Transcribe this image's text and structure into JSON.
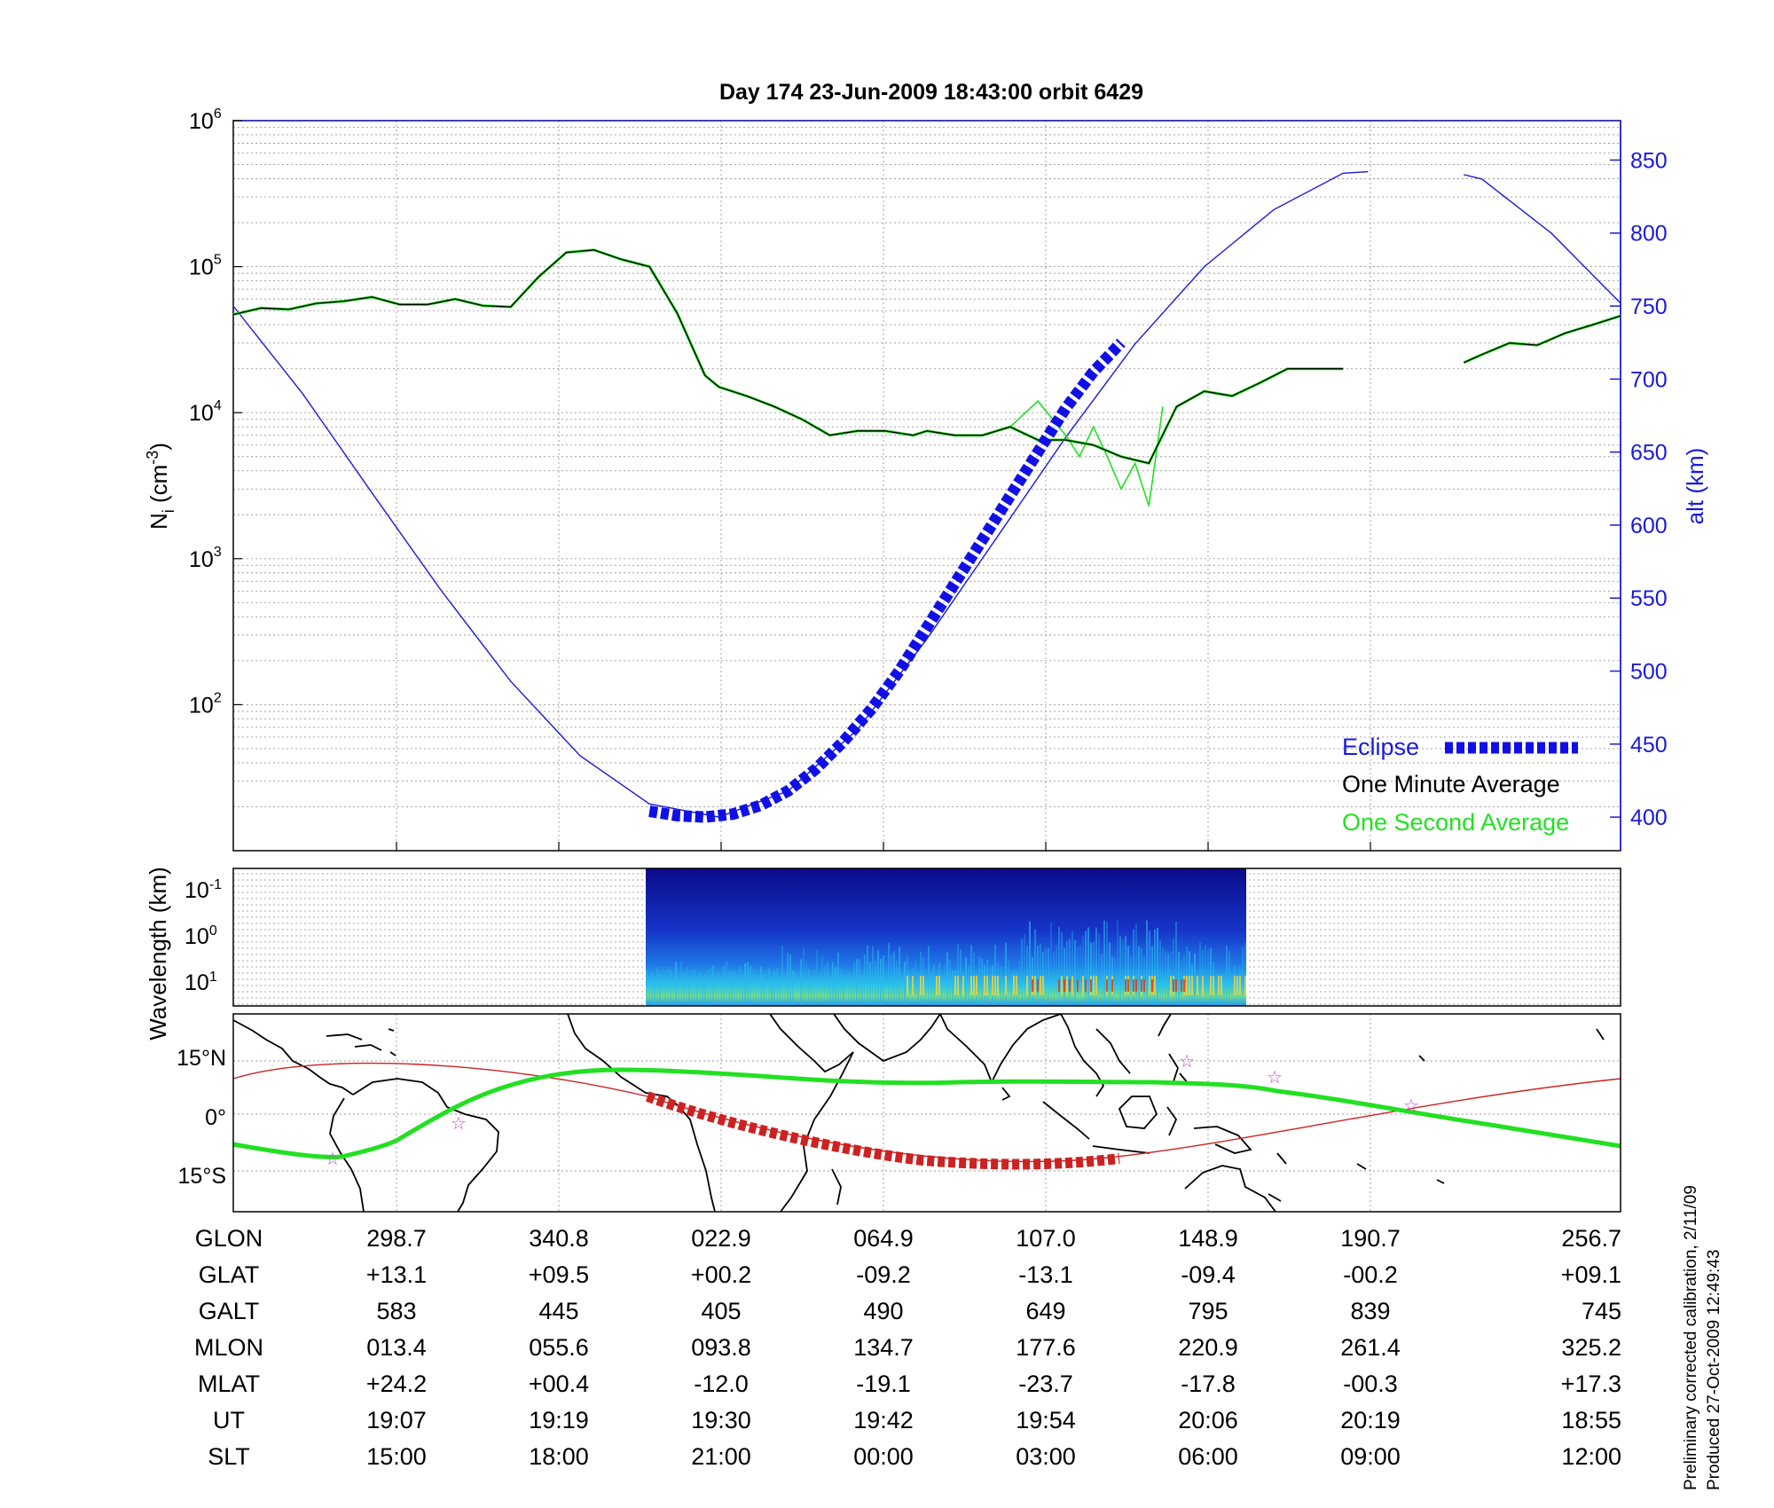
{
  "title": "Day 174  23-Jun-2009 18:43:00   orbit 6429",
  "notes": [
    "Preliminary corrected calibration, 2/11/09",
    "Produced 27-Oct-2009 12:49:43"
  ],
  "colors": {
    "eclipse": "#1010e6",
    "minute": "#000000",
    "second": "#22e022",
    "altitude": "#1a1adc",
    "track": "#cc2222",
    "eq": "#22e022",
    "coast": "#000000",
    "star": "#cc44cc"
  },
  "chart_data": [
    {
      "type": "line",
      "panel": "density",
      "xlabel": "",
      "ylabel_left": "N_i (cm^-3)",
      "ylabel_right": "alt (km)",
      "ylim_left": [
        10,
        1000000
      ],
      "yscale_left": "log",
      "left_ticks": [
        "10^2",
        "10^3",
        "10^4",
        "10^5",
        "10^6"
      ],
      "ylim_right": [
        377,
        877
      ],
      "right_ticks": [
        400,
        450,
        500,
        550,
        600,
        650,
        700,
        750,
        800,
        850
      ],
      "xlim": [
        0,
        1
      ],
      "grid": true,
      "legend_position": "bottom-right",
      "legend": [
        "Eclipse",
        "One Minute Average",
        "One Second Average"
      ],
      "series": [
        {
          "name": "One Minute Average",
          "x": [
            0.0,
            0.02,
            0.04,
            0.06,
            0.08,
            0.1,
            0.12,
            0.14,
            0.16,
            0.18,
            0.2,
            0.22,
            0.24,
            0.26,
            0.28,
            0.3,
            0.32,
            0.34,
            0.35,
            0.37,
            0.39,
            0.41,
            0.43,
            0.45,
            0.47,
            0.49,
            0.5,
            0.52,
            0.54,
            0.56,
            0.58,
            0.6,
            0.62,
            0.64,
            0.66,
            0.68,
            0.7,
            0.72,
            0.74,
            0.76,
            0.78,
            0.8,
            0.82,
            0.84,
            0.86,
            0.88,
            0.9,
            0.92,
            0.94,
            0.96,
            0.98,
            1.0
          ],
          "y": [
            47000,
            52000,
            51000,
            56000,
            58000,
            62000,
            55000,
            55000,
            60000,
            54000,
            53000,
            85000,
            125000,
            130000,
            112000,
            100000,
            48000,
            18000,
            15000,
            13000,
            11000,
            9000,
            7000,
            7500,
            7500,
            7000,
            7500,
            7000,
            7000,
            8000,
            6500,
            6500,
            6000,
            5000,
            4500,
            11000,
            14000,
            13000,
            16000,
            20000,
            20000,
            20000,
            null,
            null,
            null,
            null,
            null,
            null,
            null,
            null,
            null,
            null
          ]
        },
        {
          "name": "One Minute Average (tail)",
          "x": [
            0.887,
            0.9,
            0.92,
            0.94,
            0.96,
            0.98,
            1.0
          ],
          "y": [
            22000,
            25000,
            30000,
            29000,
            35000,
            40000,
            46000
          ]
        },
        {
          "name": "One Second Average",
          "x": [
            0.56,
            0.58,
            0.6,
            0.61,
            0.62,
            0.63,
            0.64,
            0.65,
            0.66,
            0.665,
            0.67
          ],
          "y": [
            8000,
            12000,
            7000,
            5000,
            8000,
            5000,
            3000,
            4500,
            2300,
            5000,
            11000
          ]
        },
        {
          "name": "Eclipse",
          "x": [
            0.3,
            0.32,
            0.34,
            0.36,
            0.38,
            0.4,
            0.42,
            0.44,
            0.46,
            0.48,
            0.5,
            0.52,
            0.54,
            0.56,
            0.58,
            0.6,
            0.62,
            0.64
          ],
          "y_alt": [
            404,
            401,
            400,
            402,
            408,
            418,
            433,
            452,
            474,
            500,
            530,
            560,
            590,
            620,
            650,
            680,
            705,
            725
          ]
        },
        {
          "name": "alt",
          "x": [
            0.0,
            0.05,
            0.1,
            0.15,
            0.2,
            0.25,
            0.3,
            0.35,
            0.4,
            0.45,
            0.5,
            0.55,
            0.6,
            0.65,
            0.7,
            0.75,
            0.8,
            0.818,
            0.887,
            0.9,
            0.95,
            1.0
          ],
          "y_alt": [
            750,
            690,
            622,
            555,
            493,
            442,
            409,
            400,
            418,
            460,
            522,
            591,
            660,
            724,
            777,
            816,
            841,
            842,
            840,
            837,
            800,
            752
          ]
        }
      ]
    },
    {
      "type": "heatmap",
      "panel": "spectrogram",
      "ylabel": "Wavelength (km)",
      "y_ticks": [
        "10^-1",
        "10^0",
        "10^1"
      ],
      "x_range_data": [
        0.297,
        0.729
      ]
    },
    {
      "type": "map",
      "panel": "ground-track",
      "y_ticks": [
        "15°N",
        "0°",
        "15°S"
      ],
      "series": [
        {
          "name": "orbit track"
        },
        {
          "name": "eclipse track"
        },
        {
          "name": "magnetic equator"
        }
      ]
    }
  ],
  "table": {
    "rows": [
      {
        "label": "GLON",
        "values": [
          "298.7",
          "340.8",
          "022.9",
          "064.9",
          "107.0",
          "148.9",
          "190.7",
          "256.7"
        ]
      },
      {
        "label": "GLAT",
        "values": [
          "+13.1",
          "+09.5",
          "+00.2",
          "-09.2",
          "-13.1",
          "-09.4",
          "-00.2",
          "+09.1"
        ]
      },
      {
        "label": "GALT",
        "values": [
          "583",
          "445",
          "405",
          "490",
          "649",
          "795",
          "839",
          "745"
        ]
      },
      {
        "label": "MLON",
        "values": [
          "013.4",
          "055.6",
          "093.8",
          "134.7",
          "177.6",
          "220.9",
          "261.4",
          "325.2"
        ]
      },
      {
        "label": "MLAT",
        "values": [
          "+24.2",
          "+00.4",
          "-12.0",
          "-19.1",
          "-23.7",
          "-17.8",
          "-00.3",
          "+17.3"
        ]
      },
      {
        "label": "UT",
        "values": [
          "19:07",
          "19:19",
          "19:30",
          "19:42",
          "19:54",
          "20:06",
          "20:19",
          "18:55"
        ]
      },
      {
        "label": "SLT",
        "values": [
          "15:00",
          "18:00",
          "21:00",
          "00:00",
          "03:00",
          "06:00",
          "09:00",
          "12:00"
        ]
      }
    ]
  }
}
